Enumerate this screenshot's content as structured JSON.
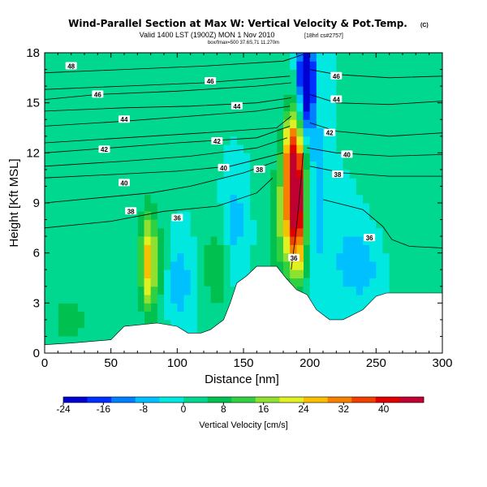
{
  "chart_data": {
    "type": "heatmap",
    "title": "Wind-Parallel Section at Max W: Vertical Velocity & Pot.Temp.",
    "title_mark": "(C)",
    "subtitle_main": "Valid 1400 LST (1900Z) MON 1 Nov 2010",
    "subtitle_suffix": "[18hrl cs#2757]",
    "subtitle_small": "box/fmax=500 37.6S,71 11.270m",
    "xlabel": "Distance [nm]",
    "ylabel": "Height [Kft MSL]",
    "xlim": [
      0,
      300
    ],
    "ylim": [
      0,
      18
    ],
    "xticks": [
      0,
      50,
      100,
      150,
      200,
      250,
      300
    ],
    "yticks": [
      0,
      3,
      6,
      9,
      12,
      15,
      18
    ],
    "colorbar": {
      "label": "Vertical Velocity [cm/s]",
      "min": -24,
      "max": 48,
      "tick_values": [
        -24,
        -16,
        -8,
        0,
        8,
        16,
        24,
        32,
        40
      ],
      "colors": [
        "#0000d0",
        "#0030ff",
        "#0080ff",
        "#00c0ff",
        "#00e8e0",
        "#00d890",
        "#00c050",
        "#30d040",
        "#90e030",
        "#e0f020",
        "#f8c000",
        "#f88000",
        "#f04000",
        "#e00000",
        "#c00030"
      ]
    },
    "terrain_profile": [
      [
        0,
        0.5
      ],
      [
        20,
        0.6
      ],
      [
        50,
        0.8
      ],
      [
        60,
        1.6
      ],
      [
        85,
        1.8
      ],
      [
        100,
        1.6
      ],
      [
        108,
        1.2
      ],
      [
        118,
        1.2
      ],
      [
        125,
        1.4
      ],
      [
        135,
        2.0
      ],
      [
        140,
        3.0
      ],
      [
        145,
        4.2
      ],
      [
        152,
        4.6
      ],
      [
        160,
        5.2
      ],
      [
        175,
        5.2
      ],
      [
        182,
        4.5
      ],
      [
        190,
        3.8
      ],
      [
        198,
        3.5
      ],
      [
        205,
        2.6
      ],
      [
        215,
        2.0
      ],
      [
        225,
        2.0
      ],
      [
        240,
        2.6
      ],
      [
        250,
        3.4
      ],
      [
        258,
        3.6
      ],
      [
        300,
        3.6
      ]
    ],
    "theta_contours": [
      {
        "label": "48",
        "points": [
          [
            0,
            16.8
          ],
          [
            60,
            17.0
          ],
          [
            120,
            17.2
          ],
          [
            180,
            17.5
          ],
          [
            195,
            17.9
          ]
        ]
      },
      {
        "label": "46",
        "points": [
          [
            0,
            15.8
          ],
          [
            60,
            16.0
          ],
          [
            120,
            16.2
          ],
          [
            185,
            16.6
          ]
        ]
      },
      {
        "label": "46",
        "points": [
          [
            0,
            15.2
          ],
          [
            40,
            15.5
          ],
          [
            100,
            15.7
          ],
          [
            160,
            16.0
          ],
          [
            186,
            16.2
          ]
        ]
      },
      {
        "label": "46",
        "points": [
          [
            200,
            17.0
          ],
          [
            220,
            16.7
          ],
          [
            260,
            16.5
          ],
          [
            300,
            16.6
          ]
        ]
      },
      {
        "label": "44",
        "points": [
          [
            0,
            14.5
          ],
          [
            60,
            14.7
          ],
          [
            110,
            14.8
          ],
          [
            160,
            15.0
          ],
          [
            186,
            15.3
          ]
        ]
      },
      {
        "label": "44",
        "points": [
          [
            0,
            13.6
          ],
          [
            60,
            13.9
          ],
          [
            110,
            14.2
          ],
          [
            160,
            14.5
          ],
          [
            185,
            14.8
          ]
        ]
      },
      {
        "label": "44",
        "points": [
          [
            200,
            15.5
          ],
          [
            220,
            15.0
          ],
          [
            260,
            14.9
          ],
          [
            300,
            15.1
          ]
        ]
      },
      {
        "label": "42",
        "points": [
          [
            0,
            12.0
          ],
          [
            50,
            12.3
          ],
          [
            100,
            12.6
          ],
          [
            160,
            12.9
          ],
          [
            185,
            13.6
          ]
        ]
      },
      {
        "label": "42",
        "points": [
          [
            0,
            12.6
          ],
          [
            60,
            12.9
          ],
          [
            120,
            13.2
          ],
          [
            175,
            13.5
          ],
          [
            186,
            14.2
          ]
        ]
      },
      {
        "label": "42",
        "points": [
          [
            200,
            13.8
          ],
          [
            220,
            13.3
          ],
          [
            260,
            13.0
          ],
          [
            300,
            13.2
          ]
        ]
      },
      {
        "label": "40",
        "points": [
          [
            0,
            10.5
          ],
          [
            50,
            10.7
          ],
          [
            100,
            10.9
          ],
          [
            140,
            11.2
          ],
          [
            180,
            12.0
          ]
        ]
      },
      {
        "label": "40",
        "points": [
          [
            0,
            11.2
          ],
          [
            60,
            11.5
          ],
          [
            110,
            11.8
          ],
          [
            160,
            12.3
          ],
          [
            183,
            12.9
          ]
        ]
      },
      {
        "label": "40",
        "points": [
          [
            198,
            12.3
          ],
          [
            220,
            12.0
          ],
          [
            260,
            11.8
          ],
          [
            300,
            11.9
          ]
        ]
      },
      {
        "label": "38",
        "points": [
          [
            0,
            9.0
          ],
          [
            40,
            9.3
          ],
          [
            80,
            9.6
          ],
          [
            110,
            10.0
          ],
          [
            150,
            10.8
          ],
          [
            175,
            11.5
          ]
        ]
      },
      {
        "label": "38",
        "points": [
          [
            200,
            11.2
          ],
          [
            225,
            10.8
          ],
          [
            260,
            10.6
          ],
          [
            300,
            10.6
          ]
        ]
      },
      {
        "label": "36",
        "points": [
          [
            0,
            7.5
          ],
          [
            50,
            7.9
          ],
          [
            90,
            8.5
          ],
          [
            130,
            8.8
          ],
          [
            160,
            9.6
          ],
          [
            172,
            10.5
          ]
        ]
      },
      {
        "label": "36",
        "points": [
          [
            210,
            9.2
          ],
          [
            240,
            8.6
          ],
          [
            255,
            7.6
          ],
          [
            262,
            6.8
          ],
          [
            275,
            6.4
          ],
          [
            300,
            6.3
          ]
        ]
      },
      {
        "label": "36",
        "points": [
          [
            186,
            5.0
          ],
          [
            190,
            7.5
          ],
          [
            193,
            10.0
          ],
          [
            195,
            12.0
          ]
        ]
      }
    ],
    "contour_label_positions": [
      {
        "label": "48",
        "x": 20,
        "y": 17.2
      },
      {
        "label": "46",
        "x": 40,
        "y": 15.5
      },
      {
        "label": "46",
        "x": 125,
        "y": 16.3
      },
      {
        "label": "46",
        "x": 220,
        "y": 16.6
      },
      {
        "label": "44",
        "x": 60,
        "y": 14.0
      },
      {
        "label": "44",
        "x": 145,
        "y": 14.8
      },
      {
        "label": "44",
        "x": 220,
        "y": 15.2
      },
      {
        "label": "42",
        "x": 45,
        "y": 12.2
      },
      {
        "label": "42",
        "x": 130,
        "y": 12.7
      },
      {
        "label": "42",
        "x": 215,
        "y": 13.2
      },
      {
        "label": "40",
        "x": 60,
        "y": 10.2
      },
      {
        "label": "40",
        "x": 135,
        "y": 11.1
      },
      {
        "label": "40",
        "x": 228,
        "y": 11.9
      },
      {
        "label": "38",
        "x": 65,
        "y": 8.5
      },
      {
        "label": "38",
        "x": 162,
        "y": 11.0
      },
      {
        "label": "38",
        "x": 221,
        "y": 10.7
      },
      {
        "label": "36",
        "x": 100,
        "y": 8.1
      },
      {
        "label": "36",
        "x": 245,
        "y": 6.9
      },
      {
        "label": "36",
        "x": 188,
        "y": 5.7
      }
    ],
    "velocity_features": [
      {
        "name": "updraft-core",
        "x": 190,
        "y": 9.0,
        "w_cms": 44,
        "sx": 5,
        "sy": 3.0
      },
      {
        "name": "updraft-upper",
        "x": 186,
        "y": 12.0,
        "w_cms": 20,
        "sx": 5,
        "sy": 1.8
      },
      {
        "name": "updraft-mid",
        "x": 180,
        "y": 8.0,
        "w_cms": 14,
        "sx": 8,
        "sy": 2.5
      },
      {
        "name": "downdraft-top",
        "x": 198,
        "y": 15.5,
        "w_cms": -24,
        "sx": 4,
        "sy": 2.0
      },
      {
        "name": "downdraft-top2",
        "x": 197,
        "y": 17.0,
        "w_cms": -20,
        "sx": 4,
        "sy": 1.2
      },
      {
        "name": "downdraft-lee",
        "x": 207,
        "y": 10.0,
        "w_cms": -8,
        "sx": 5,
        "sy": 3.0
      },
      {
        "name": "updraft-left",
        "x": 78,
        "y": 5.5,
        "w_cms": 22,
        "sx": 4,
        "sy": 2.0
      },
      {
        "name": "updraft-left-wide",
        "x": 85,
        "y": 5.0,
        "w_cms": 8,
        "sx": 10,
        "sy": 2.5
      },
      {
        "name": "updraft-slope",
        "x": 130,
        "y": 5.0,
        "w_cms": 8,
        "sx": 10,
        "sy": 2.0
      },
      {
        "name": "downdraft-left",
        "x": 100,
        "y": 4.5,
        "w_cms": -10,
        "sx": 8,
        "sy": 2.0
      },
      {
        "name": "downdraft-slope",
        "x": 143,
        "y": 7.5,
        "w_cms": -8,
        "sx": 6,
        "sy": 2.5
      },
      {
        "name": "downdraft-right",
        "x": 240,
        "y": 5.5,
        "w_cms": -8,
        "sx": 18,
        "sy": 2.0
      },
      {
        "name": "updraft-right",
        "x": 265,
        "y": 7.5,
        "w_cms": 6,
        "sx": 15,
        "sy": 3.0
      },
      {
        "name": "lower-left",
        "x": 18,
        "y": 2.0,
        "w_cms": 6,
        "sx": 15,
        "sy": 1.5
      },
      {
        "name": "band-upper",
        "x": 60,
        "y": 13.5,
        "w_cms": 2,
        "sx": 60,
        "sy": 3.0
      }
    ]
  }
}
